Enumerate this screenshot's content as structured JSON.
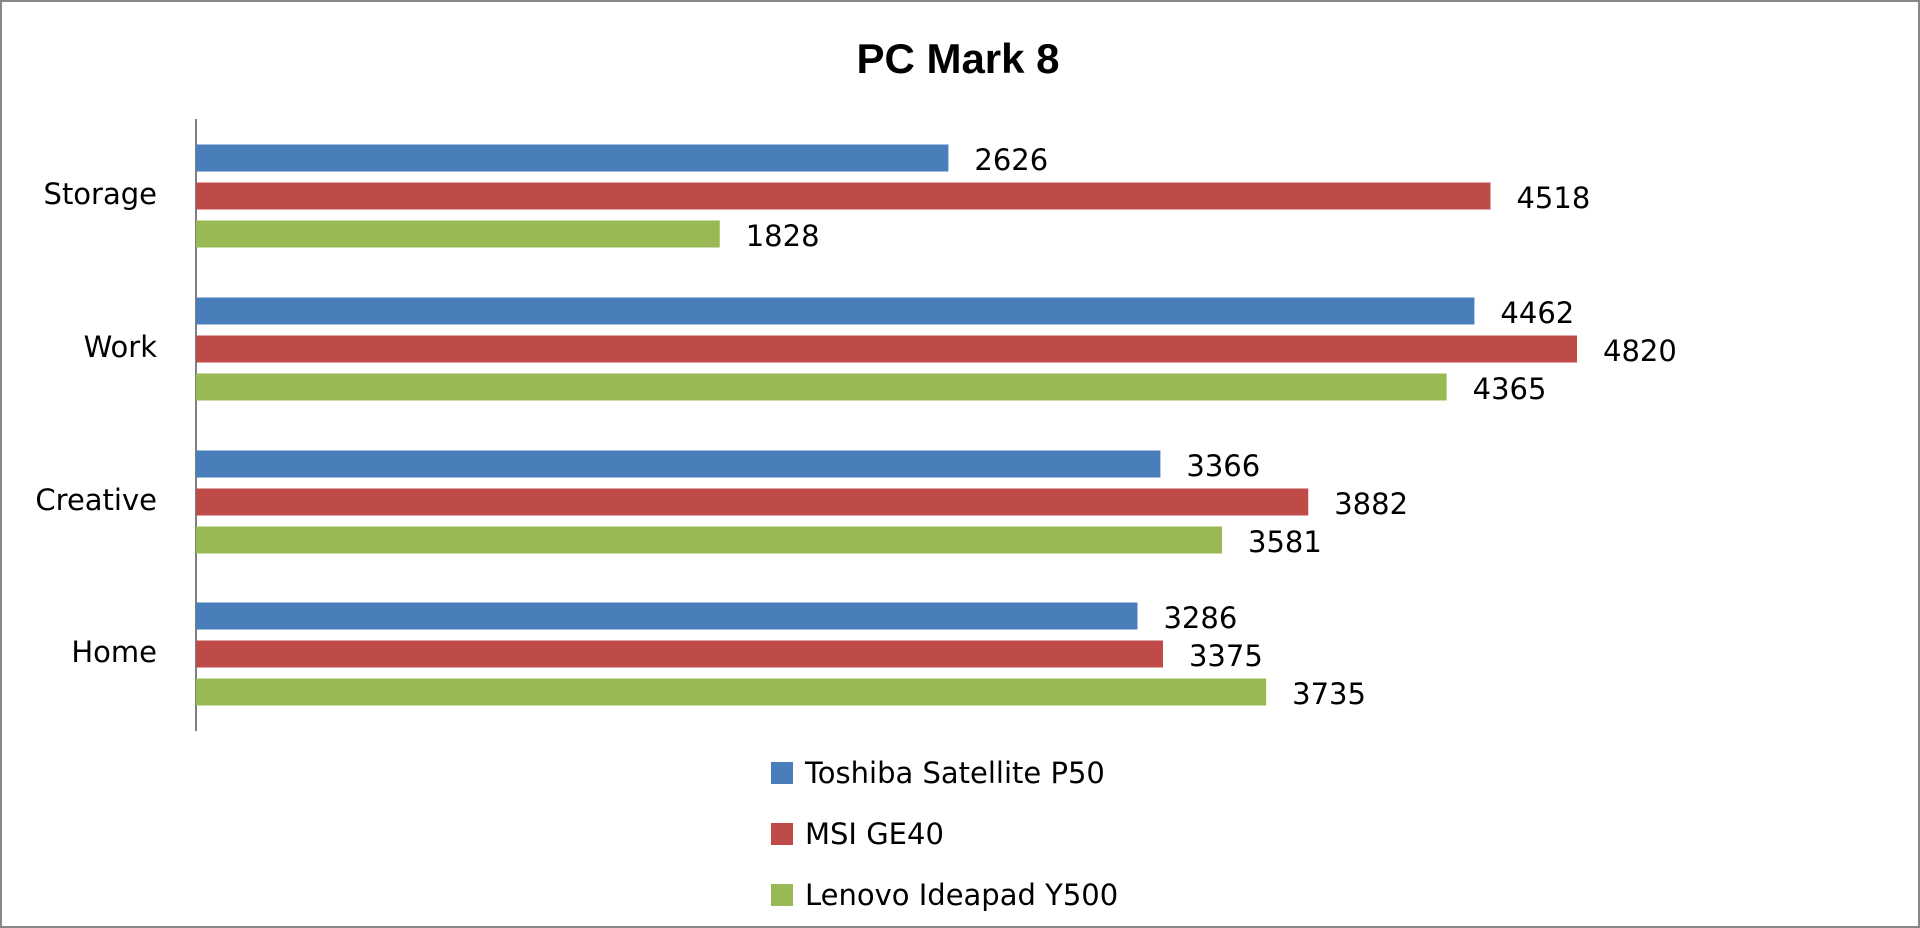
{
  "chart_data": {
    "type": "bar",
    "orientation": "horizontal",
    "title": "PC Mark 8",
    "categories": [
      "Storage",
      "Work",
      "Creative",
      "Home"
    ],
    "series": [
      {
        "name": "Toshiba Satellite P50",
        "color": "#4a7ebb",
        "values": [
          2626,
          4462,
          3366,
          3286
        ]
      },
      {
        "name": "MSI GE40",
        "color": "#be4b48",
        "values": [
          4518,
          4820,
          3882,
          3375
        ]
      },
      {
        "name": "Lenovo Ideapad Y500",
        "color": "#98b954",
        "values": [
          1828,
          4365,
          3581,
          3735
        ]
      }
    ],
    "legend": "bottom"
  }
}
